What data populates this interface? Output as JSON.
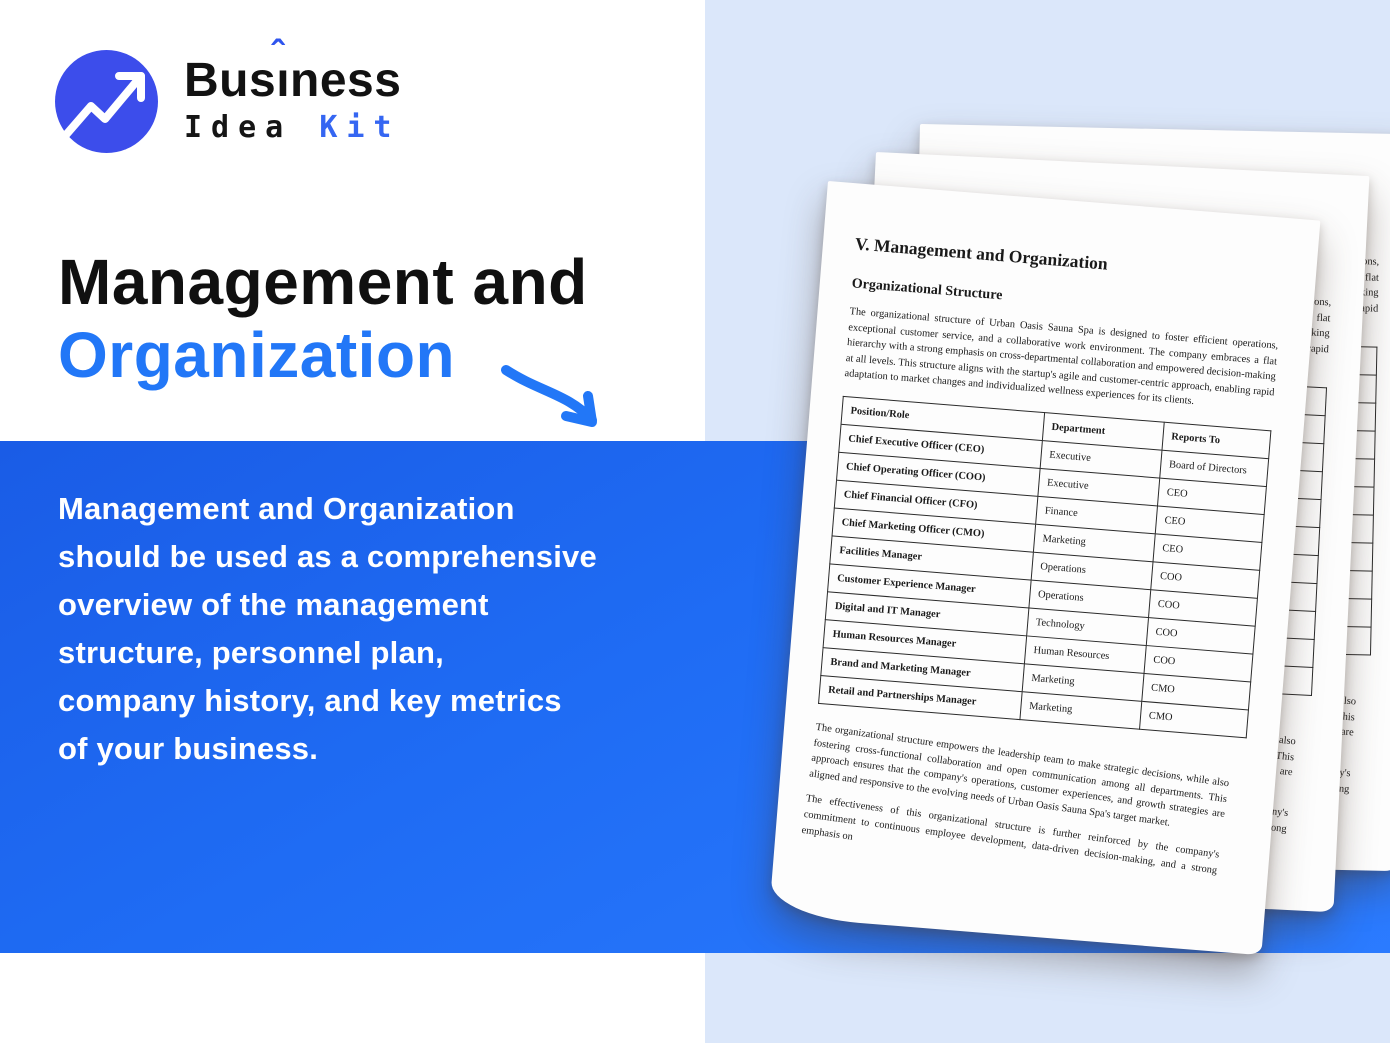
{
  "logo": {
    "brand_pre": "Bus",
    "brand_i": "ı",
    "brand_caret": "ˆ",
    "brand_post": "ness",
    "brand_word2": "Idea",
    "brand_word3": "Kit"
  },
  "hero": {
    "title_line1": "Management and",
    "title_line2": "Organization"
  },
  "description": {
    "lines": [
      "Management and Organization",
      "should be used as a comprehensive",
      "overview of the management",
      "structure, personnel plan,",
      "company history, and key metrics",
      "of your business."
    ]
  },
  "document": {
    "title": "V. Management and Organization",
    "section_heading": "Organizational Structure",
    "intro_paragraph": "The organizational structure of Urban Oasis Sauna Spa is designed to foster efficient operations, exceptional customer service, and a collaborative work environment. The company embraces a flat hierarchy with a strong emphasis on cross-departmental collaboration and empowered decision-making at all levels. This structure aligns with the startup's agile and customer-centric approach, enabling rapid adaptation to market changes and individualized wellness experiences for its clients.",
    "table": {
      "headers": [
        "Position/Role",
        "Department",
        "Reports To"
      ],
      "rows": [
        [
          "Chief Executive Officer (CEO)",
          "Executive",
          "Board of Directors"
        ],
        [
          "Chief Operating Officer (COO)",
          "Executive",
          "CEO"
        ],
        [
          "Chief Financial Officer (CFO)",
          "Finance",
          "CEO"
        ],
        [
          "Chief Marketing Officer (CMO)",
          "Marketing",
          "CEO"
        ],
        [
          "Facilities Manager",
          "Operations",
          "COO"
        ],
        [
          "Customer Experience Manager",
          "Operations",
          "COO"
        ],
        [
          "Digital and IT Manager",
          "Technology",
          "COO"
        ],
        [
          "Human Resources Manager",
          "Human Resources",
          "COO"
        ],
        [
          "Brand and Marketing Manager",
          "Marketing",
          "CMO"
        ],
        [
          "Retail and Partnerships Manager",
          "Marketing",
          "CMO"
        ]
      ]
    },
    "closing_paragraph_1": "The organizational structure empowers the leadership team to make strategic decisions, while also fostering cross-functional collaboration and open communication among all departments. This approach ensures that the company's operations, customer experiences, and growth strategies are aligned and responsive to the evolving needs of Urban Oasis Sauna Spa's target market.",
    "closing_paragraph_2": "The effectiveness of this organizational structure is further reinforced by the company's commitment to continuous employee development, data-driven decision-making, and a strong emphasis on"
  },
  "colors": {
    "accent_blue": "#2277f7",
    "logo_circle_blue": "#3c4deb",
    "logo_kit_blue": "#3566f2",
    "band_blue": "#1f6cf4",
    "panel_light_blue": "#dbe7fa",
    "heading_black": "#101010",
    "band_text_white": "#ffffff"
  }
}
